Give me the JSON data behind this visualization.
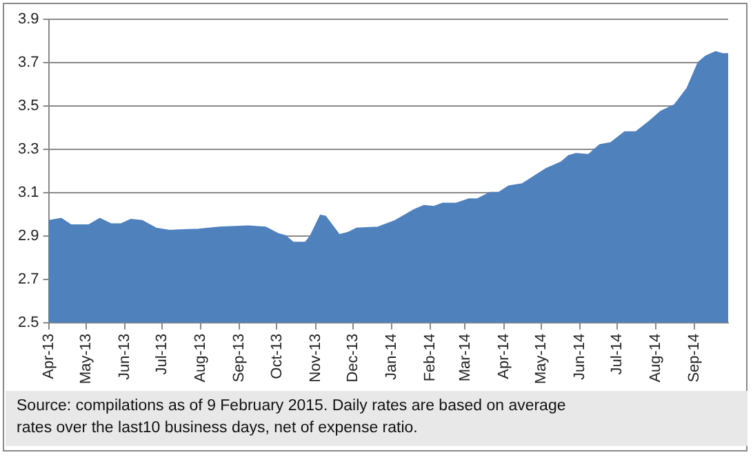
{
  "chart_data": {
    "type": "area",
    "x": [
      "2013-04-01",
      "2013-04-11",
      "2013-04-19",
      "2013-05-03",
      "2013-05-12",
      "2013-05-21",
      "2013-05-29",
      "2013-06-06",
      "2013-06-15",
      "2013-06-26",
      "2013-07-07",
      "2013-07-30",
      "2013-08-16",
      "2013-09-08",
      "2013-09-22",
      "2013-10-02",
      "2013-10-08",
      "2013-10-14",
      "2013-10-24",
      "2013-10-28",
      "2013-11-05",
      "2013-11-09",
      "2013-11-20",
      "2013-11-27",
      "2013-12-04",
      "2013-12-21",
      "2014-01-04",
      "2014-01-19",
      "2014-01-27",
      "2014-02-04",
      "2014-02-11",
      "2014-02-22",
      "2014-03-04",
      "2014-03-11",
      "2014-03-21",
      "2014-03-28",
      "2014-04-05",
      "2014-04-16",
      "2014-04-24",
      "2014-05-05",
      "2014-05-17",
      "2014-05-23",
      "2014-05-29",
      "2014-06-08",
      "2014-06-17",
      "2014-06-26",
      "2014-07-07",
      "2014-07-16",
      "2014-07-27",
      "2014-08-05",
      "2014-08-16",
      "2014-08-26",
      "2014-09-04",
      "2014-09-10",
      "2014-09-18",
      "2014-09-24",
      "2014-09-28"
    ],
    "series": [
      {
        "color": "#4f81bd",
        "values": [
          2.97,
          2.98,
          2.95,
          2.95,
          2.98,
          2.955,
          2.955,
          2.975,
          2.97,
          2.935,
          2.925,
          2.93,
          2.94,
          2.945,
          2.94,
          2.91,
          2.9,
          2.87,
          2.87,
          2.9,
          2.995,
          2.99,
          2.905,
          2.915,
          2.935,
          2.94,
          2.97,
          3.02,
          3.04,
          3.035,
          3.05,
          3.05,
          3.07,
          3.07,
          3.1,
          3.1,
          3.13,
          3.14,
          3.17,
          3.21,
          3.24,
          3.27,
          3.28,
          3.275,
          3.32,
          3.33,
          3.38,
          3.38,
          3.43,
          3.475,
          3.505,
          3.58,
          3.7,
          3.73,
          3.75,
          3.74,
          3.74
        ]
      }
    ],
    "xlim": [
      "2013-04-01",
      "2014-09-28"
    ],
    "xticks": [
      {
        "value": "2013-04-01",
        "label": "Apr-13"
      },
      {
        "value": "2013-05-01",
        "label": "May-13"
      },
      {
        "value": "2013-06-01",
        "label": "Jun-13"
      },
      {
        "value": "2013-07-01",
        "label": "Jul-13"
      },
      {
        "value": "2013-08-01",
        "label": "Aug-13"
      },
      {
        "value": "2013-09-01",
        "label": "Sep-13"
      },
      {
        "value": "2013-10-01",
        "label": "Oct-13"
      },
      {
        "value": "2013-11-01",
        "label": "Nov-13"
      },
      {
        "value": "2013-12-01",
        "label": "Dec-13"
      },
      {
        "value": "2014-01-01",
        "label": "Jan-14"
      },
      {
        "value": "2014-02-01",
        "label": "Feb-14"
      },
      {
        "value": "2014-03-01",
        "label": "Mar-14"
      },
      {
        "value": "2014-04-01",
        "label": "Apr-14"
      },
      {
        "value": "2014-05-01",
        "label": "May-14"
      },
      {
        "value": "2014-06-01",
        "label": "Jun-14"
      },
      {
        "value": "2014-07-01",
        "label": "Jul-14"
      },
      {
        "value": "2014-08-01",
        "label": "Aug-14"
      },
      {
        "value": "2014-09-01",
        "label": "Sep-14"
      }
    ],
    "ylim": [
      2.5,
      3.9
    ],
    "yticks": [
      2.5,
      2.7,
      2.9,
      3.1,
      3.3,
      3.5,
      3.7,
      3.9
    ],
    "grid": "y",
    "legend": false,
    "annotations": [
      "Source: compilations as of 9 February 2015. Daily rates are based on average rates over the last10 business days, net of expense ratio."
    ]
  }
}
